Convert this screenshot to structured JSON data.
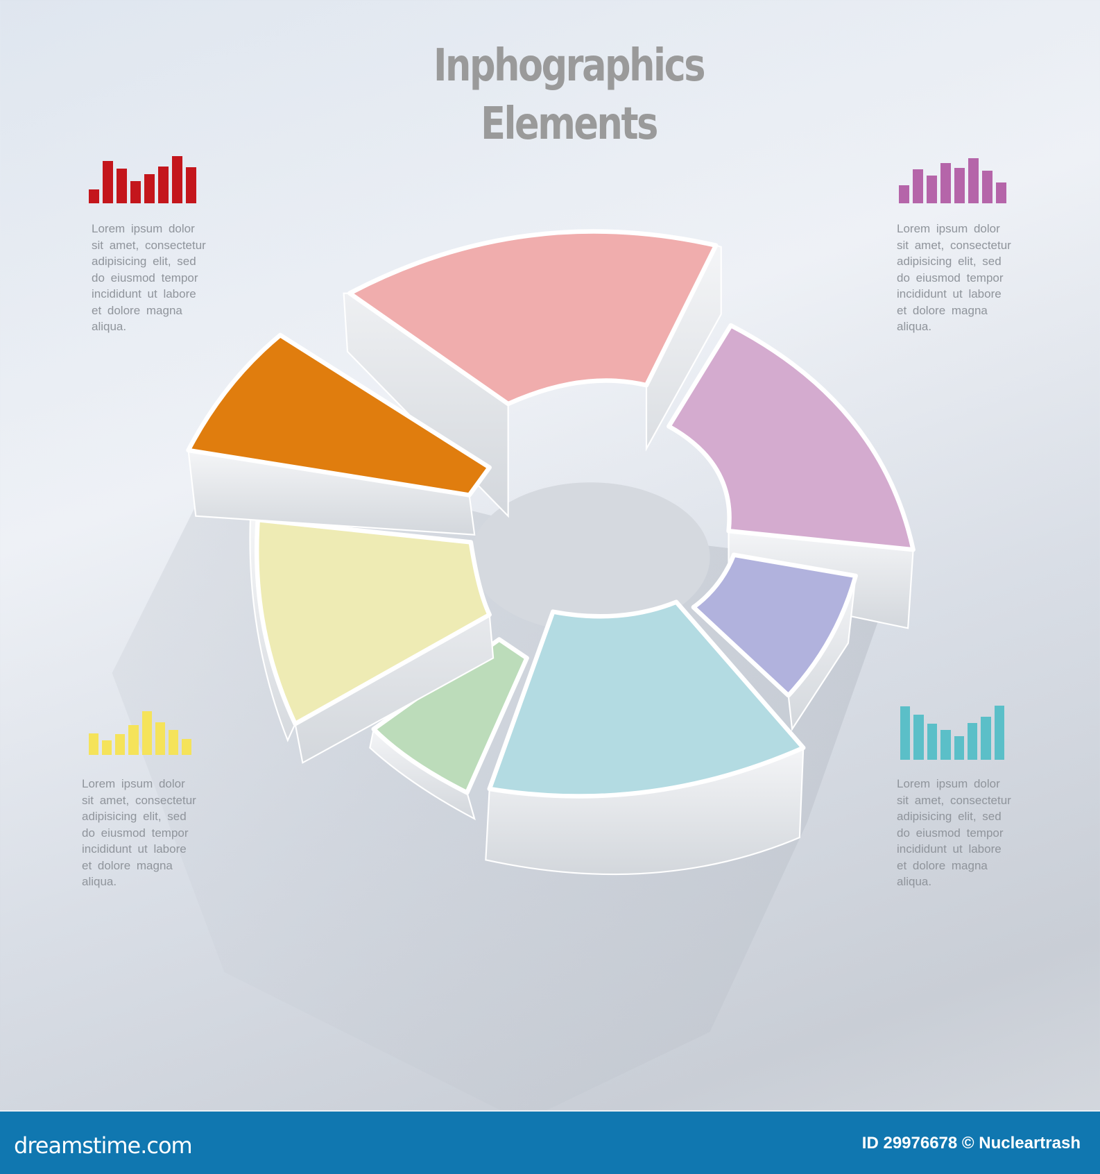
{
  "title": {
    "line1": "Inphographics",
    "line2": "Elements"
  },
  "donut": {
    "segments": [
      {
        "name": "pink",
        "color": "#f0adad"
      },
      {
        "name": "purple",
        "color": "#d4abcf"
      },
      {
        "name": "lavender",
        "color": "#b1b2dd"
      },
      {
        "name": "light-blue",
        "color": "#b3dbe2"
      },
      {
        "name": "green",
        "color": "#bcdcba"
      },
      {
        "name": "yellow",
        "color": "#eeebb4"
      },
      {
        "name": "orange",
        "color": "#e07d0e"
      }
    ]
  },
  "panels": [
    {
      "color": "#c4161c",
      "bars": [
        0.29,
        0.9,
        0.73,
        0.47,
        0.62,
        0.78,
        1.0,
        0.77
      ],
      "text": "Lorem ipsum dolor sit amet, consectetur adipisicing elit, sed do eiusmod tempor incididunt ut labore et dolore magna aliqua."
    },
    {
      "color": "#b565a9",
      "bars": [
        0.4,
        0.75,
        0.61,
        0.9,
        0.78,
        1.0,
        0.72,
        0.46
      ],
      "text": "Lorem ipsum dolor sit amet, consectetur adipisicing elit, sed do eiusmod tempor incididunt ut labore et dolore magna aliqua."
    },
    {
      "color": "#f5e35a",
      "bars": [
        0.5,
        0.34,
        0.47,
        0.69,
        1.0,
        0.74,
        0.57,
        0.37
      ],
      "text": "Lorem ipsum dolor sit amet, consectetur adipisicing elit, sed do eiusmod tempor incididunt ut labore et dolore magna aliqua."
    },
    {
      "color": "#5bbfc8",
      "bars": [
        0.99,
        0.83,
        0.67,
        0.55,
        0.44,
        0.68,
        0.8,
        1.0
      ],
      "text": "Lorem ipsum dolor sit amet, consectetur adipisicing elit, sed do eiusmod tempor incididunt ut labore et dolore magna aliqua."
    }
  ],
  "footer": {
    "logo": "dreamstime.com",
    "credit": "ID 29976678 © Nucleartrash",
    "background": "#1077b0"
  }
}
